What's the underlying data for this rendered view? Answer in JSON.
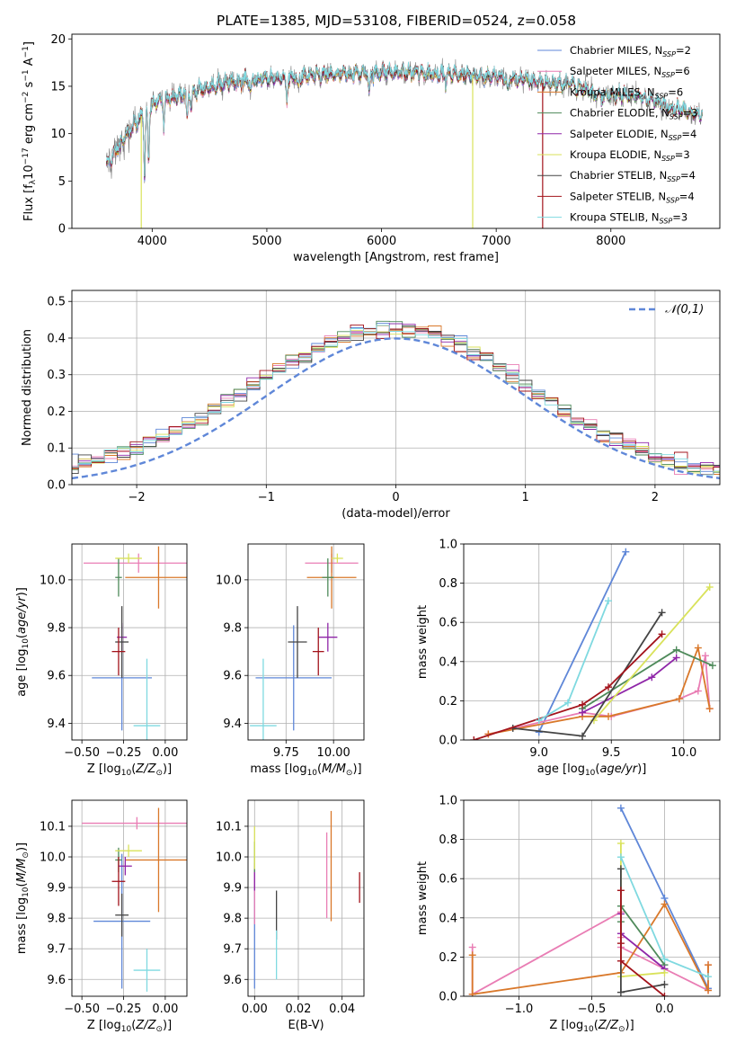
{
  "figure_title": "PLATE=1385, MJD=53108, FIBERID=0524, z=0.058",
  "colors": {
    "Chabrier MILES": "#5f87d8",
    "Salpeter MILES": "#e97db4",
    "Kroupa MILES": "#d9782a",
    "Chabrier ELODIE": "#4e8a5a",
    "Salpeter ELODIE": "#8f26a8",
    "Kroupa ELODIE": "#d9e25a",
    "Chabrier STELIB": "#444444",
    "Salpeter STELIB": "#a3141c",
    "Kroupa STELIB": "#7fd9e0"
  },
  "chart_data": [
    {
      "id": "spectrum",
      "type": "line",
      "xlabel": "wavelength [Angstrom, rest frame]",
      "ylabel": "Flux [f_λ10^-17 erg cm^-2 s^-1 A^-1]",
      "xlim": [
        3300,
        8950
      ],
      "ylim": [
        0,
        20.5
      ],
      "xticks": [
        4000,
        5000,
        6000,
        7000,
        8000
      ],
      "yticks": [
        0,
        5,
        10,
        15,
        20
      ],
      "legend_position": "top-right",
      "legend": [
        {
          "model": "Chabrier MILES",
          "n_ssp": "2"
        },
        {
          "model": "Salpeter MILES",
          "n_ssp": "6"
        },
        {
          "model": "Kroupa MILES",
          "n_ssp": "6"
        },
        {
          "model": "Chabrier ELODIE",
          "n_ssp": "3"
        },
        {
          "model": "Salpeter ELODIE",
          "n_ssp": "4"
        },
        {
          "model": "Kroupa ELODIE",
          "n_ssp": "3"
        },
        {
          "model": "Chabrier STELIB",
          "n_ssp": "4"
        },
        {
          "model": "Salpeter STELIB",
          "n_ssp": "4"
        },
        {
          "model": "Kroupa STELIB",
          "n_ssp": "3"
        }
      ],
      "continuum": {
        "x": [
          3600,
          3700,
          3800,
          3900,
          4000,
          4100,
          4300,
          4500,
          4700,
          5000,
          5300,
          5600,
          6000,
          6300,
          6600,
          7000,
          7300,
          7500,
          7700,
          7900,
          8100,
          8300,
          8500,
          8800
        ],
        "y": [
          6.5,
          8.5,
          10.2,
          11.8,
          13.0,
          13.6,
          14.3,
          14.9,
          15.5,
          15.8,
          16.0,
          16.2,
          16.5,
          16.4,
          16.3,
          16.0,
          15.6,
          15.2,
          15.3,
          13.8,
          14.1,
          13.7,
          12.8,
          12.0
        ]
      },
      "absorption_features": [
        {
          "x": 3934,
          "depth": 6.5
        },
        {
          "x": 3969,
          "depth": 5.5
        },
        {
          "x": 4102,
          "depth": 2.5
        },
        {
          "x": 4304,
          "depth": 3.0
        },
        {
          "x": 4341,
          "depth": 2.0
        },
        {
          "x": 4861,
          "depth": 1.5
        },
        {
          "x": 5175,
          "depth": 2.5
        },
        {
          "x": 5270,
          "depth": 1.2
        },
        {
          "x": 5893,
          "depth": 2.0
        },
        {
          "x": 6563,
          "depth": 1.0
        },
        {
          "x": 7100,
          "depth": 1.5
        },
        {
          "x": 7700,
          "depth": 0.8
        }
      ],
      "spikes": [
        {
          "x": 3905,
          "to": 0.0,
          "series": "Kroupa ELODIE"
        },
        {
          "x": 6795,
          "to": 0.0,
          "series": "Kroupa ELODIE"
        },
        {
          "x": 7405,
          "to": 0.0,
          "series": "Salpeter STELIB"
        }
      ]
    },
    {
      "id": "residual-histogram",
      "type": "line",
      "xlabel": "(data-model)/error",
      "ylabel": "Normed distribution",
      "xlim": [
        -2.5,
        2.5
      ],
      "ylim": [
        0,
        0.53
      ],
      "xticks": [
        -2,
        -1,
        0,
        1,
        2
      ],
      "yticks": [
        0.0,
        0.1,
        0.2,
        0.3,
        0.4,
        0.5
      ],
      "grid": true,
      "bin_width": 0.1,
      "reference_curve": {
        "label": "𝒩(0,1)",
        "sigma": 1.0,
        "peak": 0.399,
        "style": "dashed",
        "color": "#5f87d8"
      },
      "legend_position": "top-right"
    },
    {
      "id": "age-vs-Z",
      "type": "scatter",
      "xlabel": "Z [log10(Z/Z⊙)]",
      "ylabel": "age  [log10(age/yr)]",
      "xlim": [
        -0.56,
        0.13
      ],
      "ylim": [
        9.33,
        10.15
      ],
      "xticks": [
        -0.5,
        -0.25,
        0.0
      ],
      "yticks": [
        9.4,
        9.6,
        9.8,
        10.0
      ],
      "grid": true,
      "points": [
        {
          "series": "Chabrier MILES",
          "x": -0.26,
          "y": 9.59,
          "xerr": 0.18,
          "yerr": 0.22
        },
        {
          "series": "Salpeter MILES",
          "x": -0.16,
          "y": 10.07,
          "xerr": 0.33,
          "yerr": 0.04
        },
        {
          "series": "Kroupa MILES",
          "x": -0.04,
          "y": 10.01,
          "xerr": 0.2,
          "yerr": 0.13
        },
        {
          "series": "Chabrier ELODIE",
          "x": -0.28,
          "y": 10.01,
          "xerr": 0.02,
          "yerr": 0.08
        },
        {
          "series": "Salpeter ELODIE",
          "x": -0.26,
          "y": 9.76,
          "xerr": 0.03,
          "yerr": 0.06
        },
        {
          "series": "Kroupa ELODIE",
          "x": -0.22,
          "y": 10.09,
          "xerr": 0.08,
          "yerr": 0.02
        },
        {
          "series": "Chabrier STELIB",
          "x": -0.26,
          "y": 9.74,
          "xerr": 0.04,
          "yerr": 0.15
        },
        {
          "series": "Salpeter STELIB",
          "x": -0.28,
          "y": 9.7,
          "xerr": 0.04,
          "yerr": 0.1
        },
        {
          "series": "Kroupa STELIB",
          "x": -0.11,
          "y": 9.39,
          "xerr": 0.08,
          "yerr": 0.28
        }
      ]
    },
    {
      "id": "age-vs-mass",
      "type": "scatter",
      "xlabel": "mass [log10(M/M⊙)]",
      "ylabel": "",
      "xlim": [
        9.55,
        10.16
      ],
      "ylim": [
        9.33,
        10.15
      ],
      "xticks": [
        9.75,
        10.0
      ],
      "yticks": [
        9.4,
        9.6,
        9.8,
        10.0
      ],
      "grid": true,
      "points": [
        {
          "series": "Chabrier MILES",
          "x": 9.79,
          "y": 9.59,
          "xerr": 0.2,
          "yerr": 0.22
        },
        {
          "series": "Salpeter MILES",
          "x": 9.99,
          "y": 10.07,
          "xerr": 0.14,
          "yerr": 0.04
        },
        {
          "series": "Kroupa MILES",
          "x": 9.99,
          "y": 10.01,
          "xerr": 0.13,
          "yerr": 0.13
        },
        {
          "series": "Chabrier ELODIE",
          "x": 9.97,
          "y": 10.01,
          "xerr": 0.03,
          "yerr": 0.08
        },
        {
          "series": "Salpeter ELODIE",
          "x": 9.97,
          "y": 9.76,
          "xerr": 0.05,
          "yerr": 0.06
        },
        {
          "series": "Kroupa ELODIE",
          "x": 10.02,
          "y": 10.09,
          "xerr": 0.03,
          "yerr": 0.02
        },
        {
          "series": "Chabrier STELIB",
          "x": 9.81,
          "y": 9.74,
          "xerr": 0.05,
          "yerr": 0.15
        },
        {
          "series": "Salpeter STELIB",
          "x": 9.92,
          "y": 9.7,
          "xerr": 0.03,
          "yerr": 0.1
        },
        {
          "series": "Kroupa STELIB",
          "x": 9.63,
          "y": 9.39,
          "xerr": 0.07,
          "yerr": 0.28
        }
      ]
    },
    {
      "id": "mass-weight-vs-age",
      "type": "line",
      "xlabel": "age  [log10(age/yr)]",
      "ylabel": "mass weight",
      "xlim": [
        8.48,
        10.25
      ],
      "ylim": [
        0,
        1.0
      ],
      "xticks": [
        9.0,
        9.5,
        10.0
      ],
      "yticks": [
        0.0,
        0.2,
        0.4,
        0.6,
        0.8,
        1.0
      ],
      "grid": true,
      "series": [
        {
          "name": "Chabrier MILES",
          "x": [
            9.0,
            9.6
          ],
          "y": [
            0.04,
            0.96
          ]
        },
        {
          "name": "Salpeter MILES",
          "x": [
            8.65,
            9.3,
            9.5,
            9.97,
            10.1,
            10.15,
            10.18
          ],
          "y": [
            0.03,
            0.14,
            0.12,
            0.21,
            0.25,
            0.43,
            0.16
          ]
        },
        {
          "name": "Kroupa MILES",
          "x": [
            8.65,
            9.3,
            9.48,
            9.97,
            10.1,
            10.18
          ],
          "y": [
            0.03,
            0.12,
            0.12,
            0.21,
            0.47,
            0.16
          ]
        },
        {
          "name": "Chabrier ELODIE",
          "x": [
            9.3,
            9.95,
            10.2
          ],
          "y": [
            0.16,
            0.46,
            0.38
          ]
        },
        {
          "name": "Salpeter ELODIE",
          "x": [
            9.3,
            9.78,
            9.95
          ],
          "y": [
            0.14,
            0.32,
            0.42
          ]
        },
        {
          "name": "Kroupa ELODIE",
          "x": [
            9.38,
            10.18
          ],
          "y": [
            0.1,
            0.78
          ]
        },
        {
          "name": "Chabrier STELIB",
          "x": [
            8.82,
            9.3,
            9.85
          ],
          "y": [
            0.06,
            0.02,
            0.65
          ]
        },
        {
          "name": "Salpeter STELIB",
          "x": [
            8.55,
            9.3,
            9.48,
            9.85
          ],
          "y": [
            0.0,
            0.18,
            0.27,
            0.54
          ]
        },
        {
          "name": "Kroupa STELIB",
          "x": [
            9.0,
            9.2,
            9.48
          ],
          "y": [
            0.1,
            0.19,
            0.71
          ]
        }
      ]
    },
    {
      "id": "mass-vs-Z",
      "type": "scatter",
      "xlabel": "Z [log10(Z/Z⊙)]",
      "ylabel": "mass [log10(M/M⊙)]",
      "xlim": [
        -0.56,
        0.13
      ],
      "ylim": [
        9.545,
        10.185
      ],
      "xticks": [
        -0.5,
        -0.25,
        0.0
      ],
      "yticks": [
        9.6,
        9.7,
        9.8,
        9.9,
        10.0,
        10.1
      ],
      "grid": true,
      "points": [
        {
          "series": "Chabrier MILES",
          "x": -0.26,
          "y": 9.79,
          "xerr": 0.17,
          "yerr": 0.22
        },
        {
          "series": "Salpeter MILES",
          "x": -0.17,
          "y": 10.11,
          "xerr": 0.33,
          "yerr": 0.02
        },
        {
          "series": "Kroupa MILES",
          "x": -0.04,
          "y": 9.99,
          "xerr": 0.2,
          "yerr": 0.17
        },
        {
          "series": "Chabrier ELODIE",
          "x": -0.28,
          "y": 9.99,
          "xerr": 0.02,
          "yerr": 0.04
        },
        {
          "series": "Salpeter ELODIE",
          "x": -0.24,
          "y": 9.97,
          "xerr": 0.04,
          "yerr": 0.03
        },
        {
          "series": "Kroupa ELODIE",
          "x": -0.22,
          "y": 10.02,
          "xerr": 0.08,
          "yerr": 0.02
        },
        {
          "series": "Chabrier STELIB",
          "x": -0.26,
          "y": 9.81,
          "xerr": 0.04,
          "yerr": 0.07
        },
        {
          "series": "Salpeter STELIB",
          "x": -0.28,
          "y": 9.92,
          "xerr": 0.04,
          "yerr": 0.08
        },
        {
          "series": "Kroupa STELIB",
          "x": -0.11,
          "y": 9.63,
          "xerr": 0.08,
          "yerr": 0.07
        }
      ]
    },
    {
      "id": "mass-vs-EBV",
      "type": "scatter",
      "xlabel": "E(B-V)",
      "ylabel": "",
      "xlim": [
        -0.003,
        0.05
      ],
      "ylim": [
        9.545,
        10.185
      ],
      "xticks": [
        0.0,
        0.02,
        0.04
      ],
      "yticks": [
        9.6,
        9.7,
        9.8,
        9.9,
        10.0,
        10.1
      ],
      "grid": true,
      "points": [
        {
          "series": "Chabrier MILES",
          "x": 0.0,
          "y": 9.77,
          "yerr": 0.2
        },
        {
          "series": "Salpeter MILES",
          "x": 0.0,
          "y": 9.88,
          "yerr": 0.1
        },
        {
          "series": "Kroupa MILES",
          "x": 0.035,
          "y": 9.97,
          "yerr": 0.18
        },
        {
          "series": "Chabrier ELODIE",
          "x": 0.0,
          "y": 10.0,
          "yerr": 0.05
        },
        {
          "series": "Salpeter ELODIE",
          "x": 0.0,
          "y": 9.92,
          "yerr": 0.03
        },
        {
          "series": "Kroupa ELODIE",
          "x": 0.0,
          "y": 10.03,
          "yerr": 0.07
        },
        {
          "series": "Chabrier STELIB",
          "x": 0.01,
          "y": 9.81,
          "yerr": 0.08
        },
        {
          "series": "Salpeter STELIB",
          "x": 0.048,
          "y": 9.9,
          "yerr": 0.05
        },
        {
          "series": "Kroupa STELIB",
          "x": 0.01,
          "y": 9.68,
          "yerr": 0.08
        },
        {
          "series": "Salpeter MILES",
          "x": 0.033,
          "y": 9.94,
          "yerr": 0.14
        }
      ]
    },
    {
      "id": "mass-weight-vs-Z",
      "type": "line",
      "xlabel": "Z [log10(Z/Z⊙)]",
      "ylabel": "mass weight",
      "xlim": [
        -1.38,
        0.38
      ],
      "ylim": [
        0,
        1.0
      ],
      "xticks": [
        -1.0,
        -0.5,
        0.0
      ],
      "yticks": [
        0.0,
        0.2,
        0.4,
        0.6,
        0.8,
        1.0
      ],
      "grid": true,
      "series": [
        {
          "name": "Chabrier MILES",
          "x": [
            -0.3,
            0.0,
            0.3
          ],
          "y": [
            0.96,
            0.5,
            0.04
          ]
        },
        {
          "name": "Salpeter MILES",
          "x": [
            -1.32,
            -1.32,
            -0.3,
            -0.3,
            -0.3,
            0.3,
            0.3
          ],
          "y": [
            0.25,
            0.01,
            0.43,
            0.3,
            0.25,
            0.03,
            0.16
          ]
        },
        {
          "name": "Kroupa MILES",
          "x": [
            -1.32,
            -1.32,
            -0.3,
            0.0,
            0.3,
            0.3
          ],
          "y": [
            0.21,
            0.01,
            0.12,
            0.47,
            0.03,
            0.16
          ]
        },
        {
          "name": "Chabrier ELODIE",
          "x": [
            -0.3,
            -0.3,
            0.0
          ],
          "y": [
            0.38,
            0.46,
            0.16
          ]
        },
        {
          "name": "Salpeter ELODIE",
          "x": [
            -0.3,
            -0.3,
            0.0
          ],
          "y": [
            0.42,
            0.32,
            0.14
          ]
        },
        {
          "name": "Kroupa ELODIE",
          "x": [
            -0.3,
            -0.3,
            0.0
          ],
          "y": [
            0.78,
            0.1,
            0.12
          ]
        },
        {
          "name": "Chabrier STELIB",
          "x": [
            -0.3,
            -0.3,
            0.0
          ],
          "y": [
            0.65,
            0.02,
            0.06
          ]
        },
        {
          "name": "Salpeter STELIB",
          "x": [
            -0.3,
            -0.3,
            -0.3,
            0.0
          ],
          "y": [
            0.54,
            0.27,
            0.18,
            0.0
          ]
        },
        {
          "name": "Kroupa STELIB",
          "x": [
            -0.3,
            0.0,
            0.3
          ],
          "y": [
            0.71,
            0.19,
            0.1
          ]
        }
      ]
    }
  ]
}
